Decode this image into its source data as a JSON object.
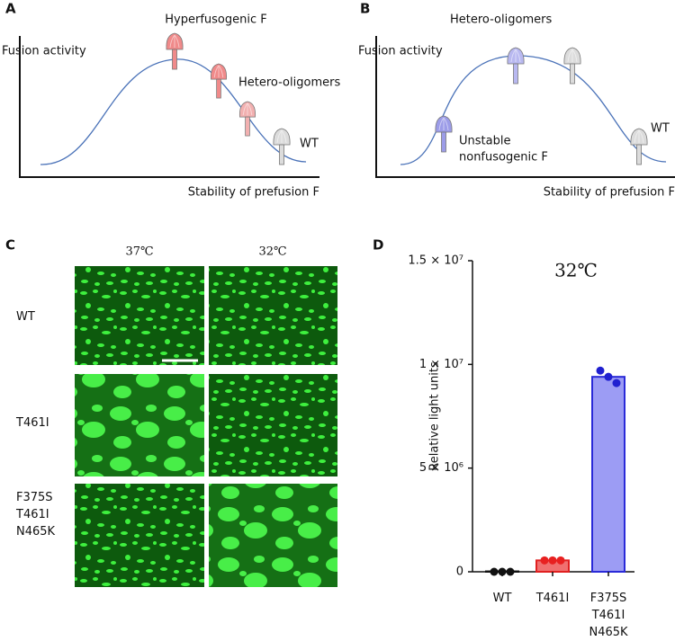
{
  "panels": {
    "a": {
      "label": "A",
      "y_axis": "Fusion activity",
      "x_axis": "Stability of prefusion F",
      "annotations": [
        "Hyperfusogenic F",
        "Hetero-oligomers",
        "WT"
      ]
    },
    "b": {
      "label": "B",
      "y_axis": "Fusion activity",
      "x_axis": "Stability of prefusion F",
      "annotations": [
        "Hetero-oligomers",
        "Unstable",
        "nonfusogenic F",
        "WT"
      ]
    },
    "c": {
      "label": "C",
      "columns": [
        "37℃",
        "32℃"
      ],
      "rows": [
        "WT",
        "T461I",
        "F375S T461I N465K"
      ]
    },
    "d": {
      "label": "D"
    }
  },
  "chart_data": {
    "type": "bar",
    "title": "32℃",
    "y_label": "Relative light units",
    "categories": [
      "WT",
      "T461I",
      "F375S T461I N465K"
    ],
    "values": [
      20000,
      550000,
      9400000
    ],
    "points": [
      [
        0,
        0,
        0
      ],
      [
        550000,
        550000,
        550000
      ],
      [
        9700000,
        9400000,
        9100000
      ]
    ],
    "colors": [
      "#111111",
      "#f07070",
      "#9c9cf4"
    ],
    "edge_colors": [
      "#111111",
      "#e02020",
      "#2a2ad8"
    ],
    "point_colors": [
      "#111111",
      "#e82020",
      "#2020d0"
    ],
    "ylim": [
      0,
      15000000
    ],
    "yticks": [
      0,
      {
        "value": 5000000,
        "label": "5 × 10⁶"
      },
      {
        "value": 10000000,
        "label": "1 × 10⁷"
      },
      {
        "value": 15000000,
        "label": "1.5 × 10⁷"
      }
    ]
  }
}
